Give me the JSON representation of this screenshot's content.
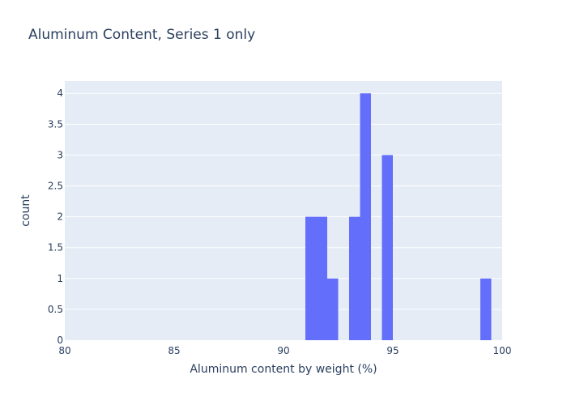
{
  "chart_data": {
    "type": "bar",
    "title": "Aluminum Content, Series 1 only",
    "xlabel": "Aluminum content by weight (%)",
    "ylabel": "count",
    "xlim": [
      80,
      100
    ],
    "ylim": [
      0,
      4.2
    ],
    "x_ticks": [
      80,
      85,
      90,
      95,
      100
    ],
    "y_ticks": [
      0,
      0.5,
      1,
      1.5,
      2,
      2.5,
      3,
      3.5,
      4
    ],
    "y_tick_labels": [
      "0",
      "0.5",
      "1",
      "1.5",
      "2",
      "2.5",
      "3",
      "3.5",
      "4"
    ],
    "bin_width": 0.5,
    "bins": [
      {
        "start": 91.0,
        "end": 91.5,
        "count": 2
      },
      {
        "start": 91.5,
        "end": 92.0,
        "count": 2
      },
      {
        "start": 92.0,
        "end": 92.5,
        "count": 1
      },
      {
        "start": 93.0,
        "end": 93.5,
        "count": 2
      },
      {
        "start": 93.5,
        "end": 94.0,
        "count": 4
      },
      {
        "start": 94.5,
        "end": 95.0,
        "count": 3
      },
      {
        "start": 99.0,
        "end": 99.5,
        "count": 1
      }
    ],
    "bar_color": "#636efa",
    "plot_bgcolor": "#e5ecf6",
    "grid": true,
    "legend": "none"
  }
}
